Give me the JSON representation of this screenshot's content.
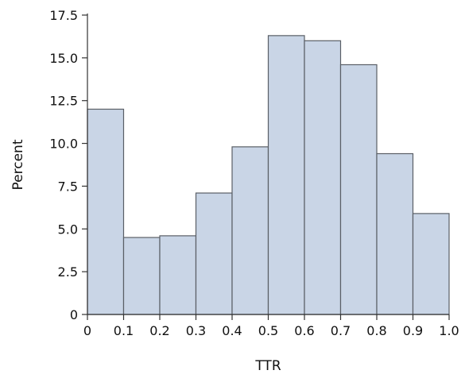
{
  "chart_data": {
    "type": "histogram",
    "title": "",
    "xlabel": "TTR",
    "ylabel": "Percent",
    "xlim": [
      0,
      1.0
    ],
    "ylim": [
      0,
      17.5
    ],
    "bin_edges": [
      0,
      0.1,
      0.2,
      0.3,
      0.4,
      0.5,
      0.6,
      0.7,
      0.8,
      0.9,
      1.0
    ],
    "values": [
      12.0,
      4.5,
      4.6,
      7.1,
      9.8,
      16.3,
      16.0,
      14.6,
      9.4,
      5.9
    ],
    "x_ticks": [
      "0",
      "0.1",
      "0.2",
      "0.3",
      "0.4",
      "0.5",
      "0.6",
      "0.7",
      "0.8",
      "0.9",
      "1.0"
    ],
    "y_ticks": [
      "0",
      "2.5",
      "5.0",
      "7.5",
      "10.0",
      "12.5",
      "15.0",
      "17.5"
    ],
    "grid": false,
    "legend": "none",
    "colors": {
      "bar_fill": "#c9d5e6",
      "bar_edge": "#5a5f66"
    }
  }
}
